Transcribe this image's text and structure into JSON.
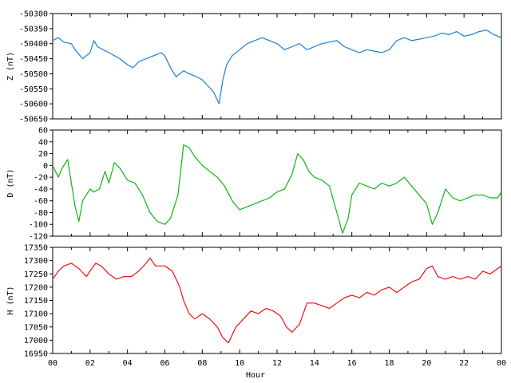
{
  "chart_data": [
    {
      "type": "line",
      "ylabel": "Z (nT)",
      "ylim": [
        -50650,
        -50300
      ],
      "y_ticks": [
        -50300,
        -50350,
        -50400,
        -50450,
        -50500,
        -50550,
        -50600,
        -50650
      ],
      "xlim": [
        0,
        24
      ],
      "color": "#1a7fd4",
      "series": [
        {
          "x": [
            0,
            0.3,
            0.6,
            1,
            1.2,
            1.6,
            1.8,
            2,
            2.2,
            2.4,
            2.7,
            3,
            3.3,
            3.6,
            4,
            4.3,
            4.6,
            5,
            5.4,
            5.8,
            6,
            6.3,
            6.6,
            7,
            7.3,
            7.7,
            8,
            8.3,
            8.6,
            8.9,
            9.1,
            9.3,
            9.6,
            10,
            10.4,
            10.8,
            11.2,
            11.6,
            12,
            12.4,
            12.8,
            13.2,
            13.6,
            14,
            14.4,
            14.8,
            15.2,
            15.6,
            16,
            16.4,
            16.8,
            17.2,
            17.6,
            18,
            18.4,
            18.8,
            19.2,
            19.6,
            20,
            20.4,
            20.8,
            21.2,
            21.6,
            22,
            22.4,
            22.8,
            23.2,
            23.6,
            24
          ],
          "y": [
            -50390,
            -50380,
            -50395,
            -50400,
            -50420,
            -50450,
            -50440,
            -50430,
            -50390,
            -50410,
            -50420,
            -50430,
            -50440,
            -50450,
            -50470,
            -50480,
            -50460,
            -50450,
            -50440,
            -50430,
            -50440,
            -50480,
            -50510,
            -50490,
            -50500,
            -50510,
            -50520,
            -50540,
            -50560,
            -50600,
            -50520,
            -50470,
            -50440,
            -50420,
            -50400,
            -50390,
            -50380,
            -50390,
            -50400,
            -50420,
            -50410,
            -50400,
            -50420,
            -50410,
            -50400,
            -50395,
            -50390,
            -50410,
            -50420,
            -50430,
            -50420,
            -50425,
            -50430,
            -50420,
            -50390,
            -50380,
            -50390,
            -50385,
            -50380,
            -50375,
            -50365,
            -50370,
            -50360,
            -50375,
            -50370,
            -50360,
            -50355,
            -50370,
            -50380
          ]
        }
      ]
    },
    {
      "type": "line",
      "ylabel": "D (nT)",
      "ylim": [
        -120,
        60
      ],
      "y_ticks": [
        60,
        40,
        20,
        0,
        -20,
        -40,
        -60,
        -80,
        -100,
        -120
      ],
      "xlim": [
        0,
        24
      ],
      "color": "#11b511",
      "series": [
        {
          "x": [
            0,
            0.3,
            0.5,
            0.8,
            1,
            1.2,
            1.4,
            1.6,
            2,
            2.2,
            2.5,
            2.8,
            3,
            3.3,
            3.6,
            4,
            4.4,
            4.8,
            5.2,
            5.6,
            6,
            6.3,
            6.7,
            7,
            7.3,
            7.6,
            8,
            8.4,
            8.8,
            9.2,
            9.6,
            10,
            10.4,
            10.8,
            11.2,
            11.6,
            12,
            12.4,
            12.8,
            13.1,
            13.4,
            13.7,
            14,
            14.4,
            14.8,
            15.2,
            15.5,
            15.8,
            16,
            16.4,
            16.8,
            17.2,
            17.6,
            18,
            18.4,
            18.8,
            19.2,
            19.6,
            20,
            20.3,
            20.6,
            21,
            21.4,
            21.8,
            22.2,
            22.6,
            23,
            23.4,
            23.8,
            24
          ],
          "y": [
            0,
            -20,
            -5,
            10,
            -30,
            -70,
            -95,
            -60,
            -40,
            -45,
            -40,
            -10,
            -30,
            5,
            -5,
            -25,
            -30,
            -50,
            -80,
            -95,
            -100,
            -90,
            -50,
            35,
            30,
            15,
            0,
            -10,
            -20,
            -35,
            -60,
            -75,
            -70,
            -65,
            -60,
            -55,
            -45,
            -40,
            -15,
            20,
            10,
            -10,
            -20,
            -25,
            -35,
            -80,
            -115,
            -90,
            -50,
            -30,
            -35,
            -40,
            -30,
            -35,
            -30,
            -20,
            -35,
            -50,
            -65,
            -100,
            -80,
            -40,
            -55,
            -60,
            -55,
            -50,
            -50,
            -55,
            -55,
            -45
          ]
        }
      ]
    },
    {
      "type": "line",
      "ylabel": "H (nT)",
      "ylim": [
        16950,
        17350
      ],
      "y_ticks": [
        17350,
        17300,
        17250,
        17200,
        17150,
        17100,
        17050,
        17000,
        16950
      ],
      "xlim": [
        0,
        24
      ],
      "color": "#ee1111",
      "series": [
        {
          "x": [
            0,
            0.3,
            0.6,
            1,
            1.4,
            1.8,
            2,
            2.3,
            2.6,
            3,
            3.4,
            3.8,
            4.2,
            4.6,
            5,
            5.2,
            5.5,
            6,
            6.4,
            6.8,
            7,
            7.3,
            7.6,
            8,
            8.4,
            8.8,
            9.1,
            9.4,
            9.8,
            10.2,
            10.6,
            11,
            11.4,
            11.8,
            12.2,
            12.5,
            12.8,
            13.2,
            13.6,
            14,
            14.4,
            14.8,
            15.2,
            15.6,
            16,
            16.4,
            16.8,
            17.2,
            17.6,
            18,
            18.4,
            18.8,
            19.2,
            19.6,
            20,
            20.3,
            20.6,
            21,
            21.4,
            21.8,
            22.2,
            22.6,
            23,
            23.4,
            23.8,
            24
          ],
          "y": [
            17230,
            17260,
            17280,
            17290,
            17270,
            17240,
            17260,
            17290,
            17280,
            17250,
            17230,
            17240,
            17240,
            17260,
            17290,
            17310,
            17280,
            17280,
            17260,
            17200,
            17150,
            17100,
            17080,
            17100,
            17080,
            17050,
            17010,
            16990,
            17050,
            17080,
            17110,
            17100,
            17120,
            17110,
            17090,
            17050,
            17030,
            17060,
            17140,
            17140,
            17130,
            17120,
            17140,
            17160,
            17170,
            17160,
            17180,
            17170,
            17190,
            17200,
            17180,
            17200,
            17220,
            17230,
            17270,
            17280,
            17240,
            17230,
            17240,
            17230,
            17240,
            17230,
            17260,
            17250,
            17270,
            17280
          ]
        }
      ]
    }
  ],
  "x_axis": {
    "label": "Hour",
    "ticks": [
      "00",
      "02",
      "04",
      "06",
      "08",
      "10",
      "12",
      "14",
      "16",
      "18",
      "20",
      "22",
      "00"
    ]
  }
}
